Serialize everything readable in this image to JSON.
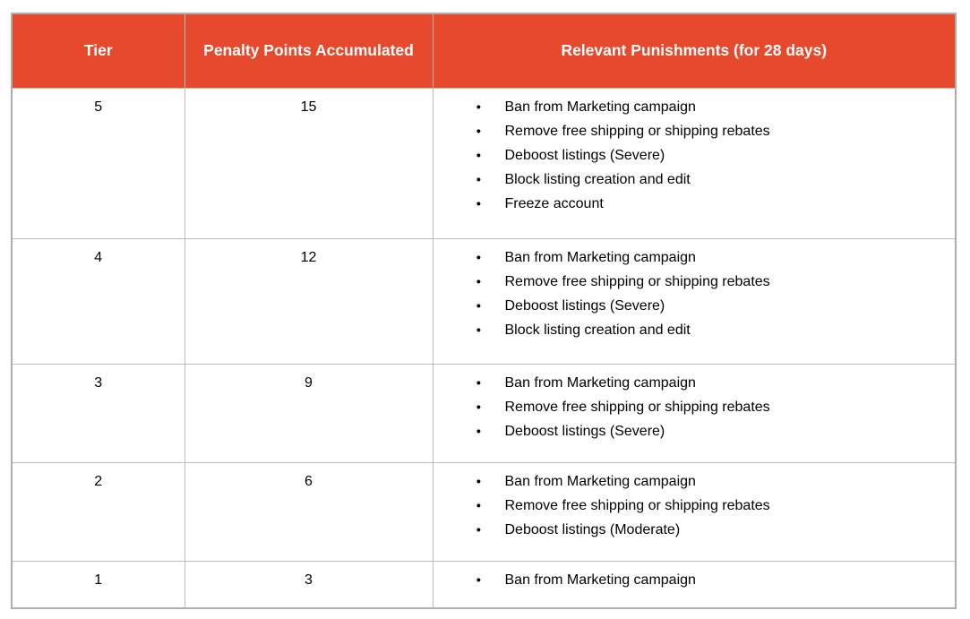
{
  "colors": {
    "header_bg": "#e7492d",
    "header_text": "#ffffff",
    "border": "#bdbdbd",
    "body_text": "#000000",
    "page_bg": "#ffffff"
  },
  "icons": {
    "bullet": "●"
  },
  "table": {
    "columns": [
      "Tier",
      "Penalty Points Accumulated",
      "Relevant Punishments (for 28 days)"
    ],
    "rows": [
      {
        "tier": "5",
        "points": "15",
        "punishments": [
          "Ban from Marketing campaign",
          "Remove free shipping or shipping rebates",
          "Deboost listings (Severe)",
          "Block listing creation and edit",
          "Freeze account"
        ]
      },
      {
        "tier": "4",
        "points": "12",
        "punishments": [
          "Ban from Marketing campaign",
          "Remove free shipping or shipping rebates",
          "Deboost listings (Severe)",
          "Block listing creation and edit"
        ]
      },
      {
        "tier": "3",
        "points": "9",
        "punishments": [
          "Ban from Marketing campaign",
          "Remove free shipping or shipping rebates",
          "Deboost listings (Severe)"
        ]
      },
      {
        "tier": "2",
        "points": "6",
        "punishments": [
          "Ban from Marketing campaign",
          "Remove free shipping or shipping rebates",
          "Deboost listings (Moderate)"
        ]
      },
      {
        "tier": "1",
        "points": "3",
        "punishments": [
          "Ban from Marketing campaign"
        ]
      }
    ]
  }
}
